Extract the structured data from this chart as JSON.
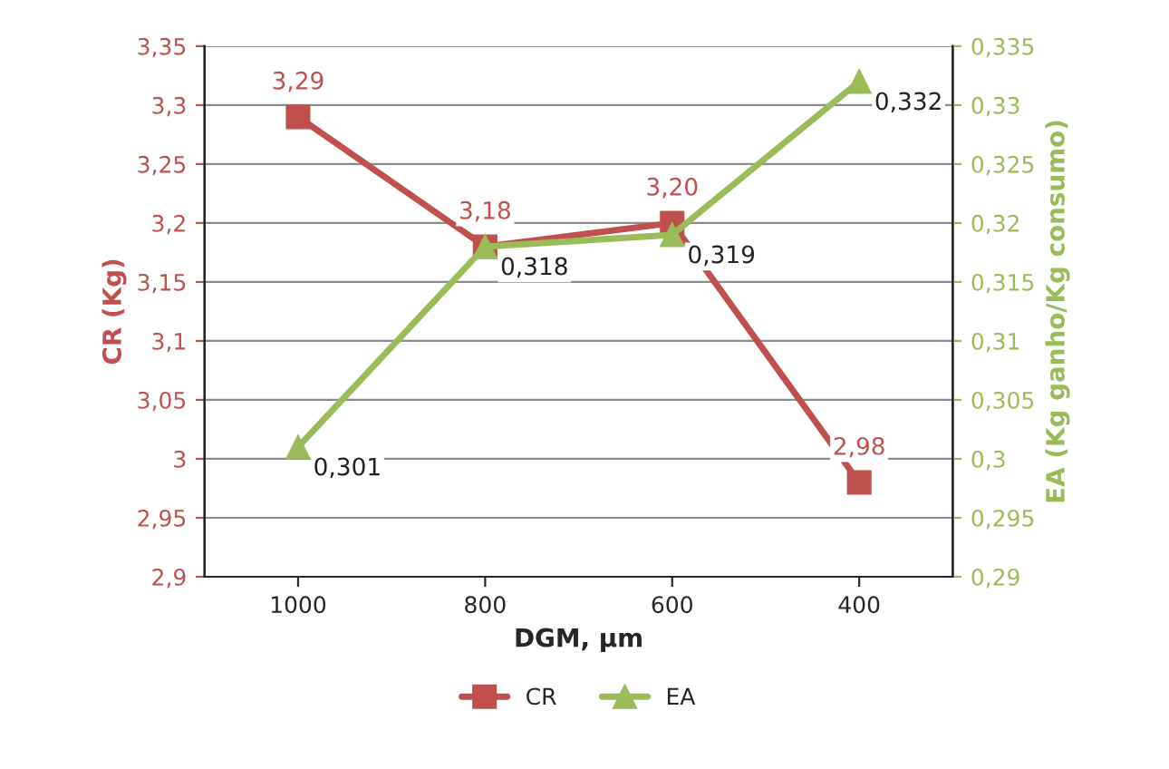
{
  "chart_data": {
    "type": "line",
    "xlabel": "DGM, µm",
    "ylabel": "CR (Kg)",
    "y2label": "EA (Kg ganho/Kg consumo)",
    "categories": [
      "1000",
      "800",
      "600",
      "400"
    ],
    "series": [
      {
        "name": "CR",
        "color": "#c0504d",
        "marker": "square",
        "values": [
          3.29,
          3.18,
          3.2,
          2.98
        ],
        "value_labels": [
          "3,29",
          "3,18",
          "3,20",
          "2,98"
        ]
      },
      {
        "name": "EA",
        "color": "#9bbb59",
        "marker": "triangle",
        "axis": "y2",
        "values": [
          0.301,
          0.318,
          0.319,
          0.332
        ],
        "value_labels": [
          "0,301",
          "0,318",
          "0,319",
          "0,332"
        ]
      }
    ],
    "ylim": [
      2.9,
      3.35
    ],
    "yticks": [
      {
        "value": 2.9,
        "label": "2,9"
      },
      {
        "value": 2.95,
        "label": "2,95"
      },
      {
        "value": 3.0,
        "label": "3"
      },
      {
        "value": 3.05,
        "label": "3,05"
      },
      {
        "value": 3.1,
        "label": "3,1"
      },
      {
        "value": 3.15,
        "label": "3,15"
      },
      {
        "value": 3.2,
        "label": "3,2"
      },
      {
        "value": 3.25,
        "label": "3,25"
      },
      {
        "value": 3.3,
        "label": "3,3"
      },
      {
        "value": 3.35,
        "label": "3,35"
      }
    ],
    "y2lim": [
      0.29,
      0.335
    ],
    "y2ticks": [
      {
        "value": 0.29,
        "label": "0,29"
      },
      {
        "value": 0.295,
        "label": "0,295"
      },
      {
        "value": 0.3,
        "label": "0,3"
      },
      {
        "value": 0.305,
        "label": "0,305"
      },
      {
        "value": 0.31,
        "label": "0,31"
      },
      {
        "value": 0.315,
        "label": "0,315"
      },
      {
        "value": 0.32,
        "label": "0,32"
      },
      {
        "value": 0.325,
        "label": "0,325"
      },
      {
        "value": 0.33,
        "label": "0,33"
      },
      {
        "value": 0.335,
        "label": "0,335"
      }
    ],
    "grid": "y",
    "legend": "bottom",
    "line_style": "solid"
  }
}
